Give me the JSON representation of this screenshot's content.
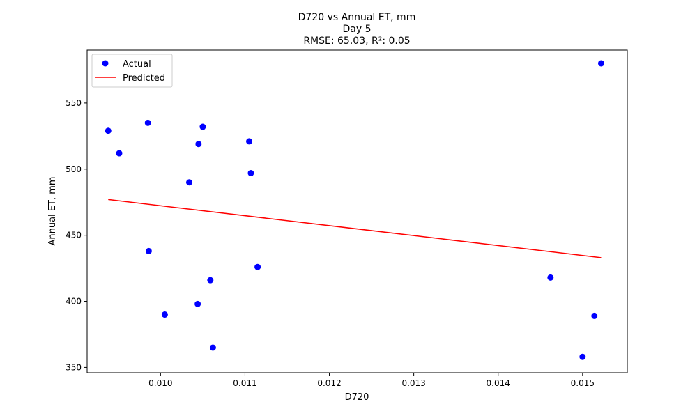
{
  "chart_data": {
    "type": "scatter",
    "title_lines": [
      "D720 vs Annual ET, mm",
      "Day 5",
      "RMSE: 65.03, R²: 0.05"
    ],
    "xlabel": "D720",
    "ylabel": "Annual ET, mm",
    "xlim": [
      0.00913,
      0.01553
    ],
    "ylim": [
      346.0,
      590.0
    ],
    "xticks": [
      0.01,
      0.011,
      0.012,
      0.013,
      0.014,
      0.015
    ],
    "xtick_labels": [
      "0.010",
      "0.011",
      "0.012",
      "0.013",
      "0.014",
      "0.015"
    ],
    "yticks": [
      350,
      400,
      450,
      500,
      550
    ],
    "ytick_labels": [
      "350",
      "400",
      "450",
      "500",
      "550"
    ],
    "grid": false,
    "legend_placement": "top-left",
    "legend": [
      "Actual",
      "Predicted"
    ],
    "series": [
      {
        "name": "Actual",
        "kind": "scatter",
        "color": "#0000ff",
        "x": [
          0.00938,
          0.00951,
          0.00985,
          0.00986,
          0.01005,
          0.01034,
          0.01044,
          0.01045,
          0.0105,
          0.01059,
          0.01062,
          0.01105,
          0.01107,
          0.01115,
          0.01462,
          0.015,
          0.01514,
          0.01522
        ],
        "y": [
          529,
          512,
          535,
          438,
          390,
          490,
          398,
          519,
          532,
          416,
          365,
          521,
          497,
          426,
          418,
          358,
          389,
          580
        ]
      },
      {
        "name": "Predicted",
        "kind": "line",
        "color": "#ff0000",
        "x": [
          0.00938,
          0.01522
        ],
        "y": [
          477,
          433
        ]
      }
    ]
  }
}
